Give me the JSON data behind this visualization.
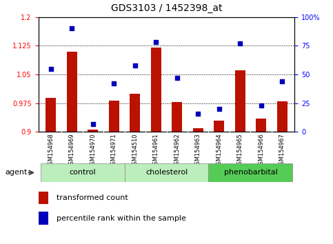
{
  "title": "GDS3103 / 1452398_at",
  "samples": [
    "GSM154968",
    "GSM154969",
    "GSM154970",
    "GSM154971",
    "GSM154510",
    "GSM154961",
    "GSM154962",
    "GSM154963",
    "GSM154964",
    "GSM154965",
    "GSM154966",
    "GSM154967"
  ],
  "transformed_count": [
    0.988,
    1.11,
    0.905,
    0.982,
    1.0,
    1.12,
    0.977,
    0.91,
    0.93,
    1.06,
    0.935,
    0.98
  ],
  "percentile_rank": [
    55,
    90,
    7,
    42,
    58,
    78,
    47,
    16,
    20,
    77,
    23,
    44
  ],
  "groups": [
    {
      "label": "control",
      "start": 0,
      "end": 3
    },
    {
      "label": "cholesterol",
      "start": 4,
      "end": 7
    },
    {
      "label": "phenobarbital",
      "start": 8,
      "end": 11
    }
  ],
  "group_colors": [
    "#bbeebb",
    "#bbeebb",
    "#55cc55"
  ],
  "ylim_left": [
    0.9,
    1.2
  ],
  "ylim_right": [
    0,
    100
  ],
  "yticks_left": [
    0.9,
    0.975,
    1.05,
    1.125,
    1.2
  ],
  "yticks_right": [
    0,
    25,
    50,
    75,
    100
  ],
  "ytick_labels_left": [
    "0.9",
    "0.975",
    "1.05",
    "1.125",
    "1.2"
  ],
  "ytick_labels_right": [
    "0",
    "25",
    "50",
    "75",
    "100%"
  ],
  "hlines": [
    0.975,
    1.05,
    1.125
  ],
  "bar_color": "#bb1100",
  "scatter_color": "#0000bb",
  "bar_width": 0.5,
  "agent_label": "agent",
  "legend_bar_label": "transformed count",
  "legend_scatter_label": "percentile rank within the sample",
  "xtick_bg": "#cccccc",
  "plot_bg": "#ffffff",
  "bar_bottom": 0.9
}
